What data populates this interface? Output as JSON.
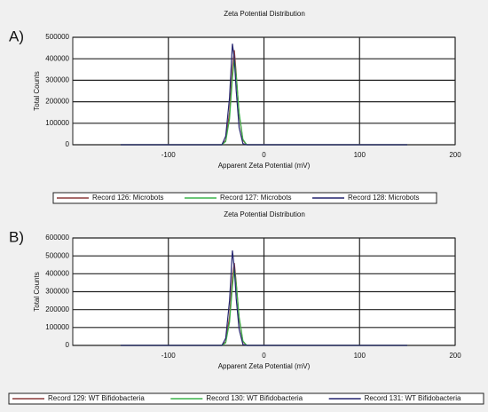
{
  "chart_data": [
    {
      "type": "line",
      "panel_label": "A)",
      "title": "Zeta Potential Distribution",
      "x_label": "Apparent Zeta Potential (mV)",
      "y_label": "Total Counts",
      "x": [
        -150,
        -44,
        -40,
        -36,
        -33,
        -31,
        -29,
        -26,
        -22,
        -18,
        150
      ],
      "series": [
        {
          "name": "Record 126: Microbots",
          "color": "#8b3a3a",
          "values": [
            0,
            0,
            20000,
            150000,
            350000,
            440000,
            330000,
            140000,
            20000,
            0,
            0
          ]
        },
        {
          "name": "Record 127: Microbots",
          "color": "#3cb44b",
          "values": [
            0,
            0,
            15000,
            120000,
            310000,
            400000,
            320000,
            150000,
            25000,
            0,
            0
          ]
        },
        {
          "name": "Record 128: Microbots",
          "color": "#23236e",
          "values": [
            0,
            0,
            40000,
            220000,
            470000,
            400000,
            250000,
            80000,
            5000,
            0,
            0
          ]
        }
      ],
      "xlim": [
        -200,
        200
      ],
      "xticks": [
        -100,
        0,
        100,
        200
      ],
      "ylim": [
        0,
        500000
      ],
      "yticks": [
        0,
        100000,
        200000,
        300000,
        400000,
        500000
      ],
      "grid": true
    },
    {
      "type": "line",
      "panel_label": "B)",
      "title": "Zeta Potential Distribution",
      "x_label": "Apparent Zeta Potential (mV)",
      "y_label": "Total Counts",
      "x": [
        -150,
        -44,
        -40,
        -36,
        -33,
        -31,
        -29,
        -26,
        -22,
        -18,
        150
      ],
      "series": [
        {
          "name": "Record 129: WT Bifidobacteria",
          "color": "#8b3a3a",
          "values": [
            0,
            0,
            20000,
            160000,
            380000,
            460000,
            350000,
            150000,
            20000,
            0,
            0
          ]
        },
        {
          "name": "Record 130: WT Bifidobacteria",
          "color": "#3cb44b",
          "values": [
            0,
            0,
            15000,
            130000,
            330000,
            430000,
            340000,
            160000,
            25000,
            0,
            0
          ]
        },
        {
          "name": "Record 131: WT Bifidobacteria",
          "color": "#23236e",
          "values": [
            0,
            0,
            40000,
            250000,
            530000,
            430000,
            260000,
            90000,
            5000,
            0,
            0
          ]
        }
      ],
      "xlim": [
        -200,
        200
      ],
      "xticks": [
        -100,
        0,
        100,
        200
      ],
      "ylim": [
        0,
        600000
      ],
      "yticks": [
        0,
        100000,
        200000,
        300000,
        400000,
        500000,
        600000
      ],
      "grid": true
    }
  ]
}
